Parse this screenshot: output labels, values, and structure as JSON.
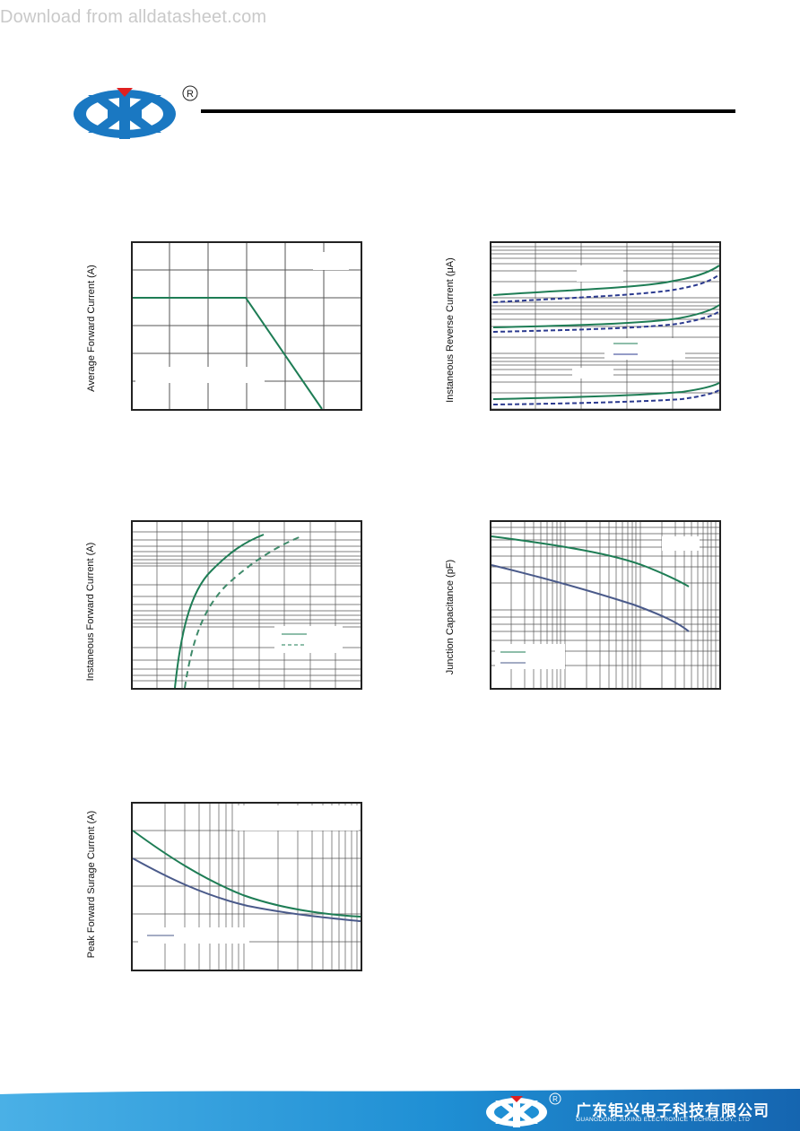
{
  "header": {
    "watermark": "Download from alldatasheet.com",
    "registered_mark": "R"
  },
  "charts": {
    "avg_forward": {
      "ylabel": "Average Forward Current (A)"
    },
    "reverse": {
      "ylabel": "Instaneous Reverse Current (μA)"
    },
    "inst_forward": {
      "ylabel": "Instaneous Forward Current  (A)"
    },
    "capacitance": {
      "ylabel": "Junction Capacitance (pF)"
    },
    "surge": {
      "ylabel": "Peak Forward Surage Current (A)"
    }
  },
  "footer": {
    "company_cn": "广东钜兴电子科技有限公司",
    "company_en": "GUANGDONG JUXING ELECTRONICE TECHNOLOGY., LTD",
    "registered_mark": "R"
  },
  "colors": {
    "green": "#1e7d55",
    "navy": "#2b3a8f",
    "slate": "#4a5a8a",
    "brand_blue": "#1a78c2",
    "brand_red": "#e02020"
  }
}
